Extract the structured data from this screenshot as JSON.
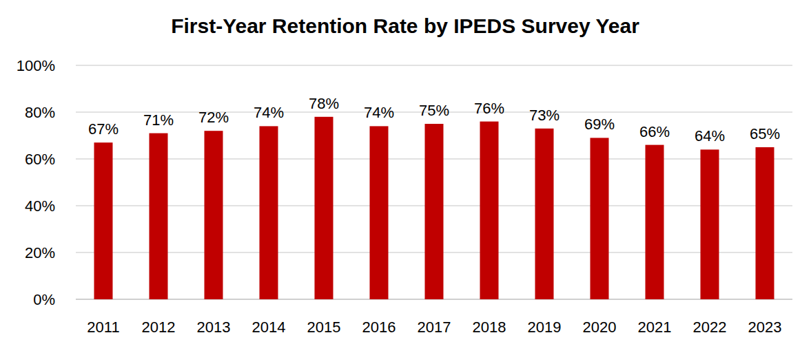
{
  "chart_data": {
    "type": "bar",
    "title": "First-Year Retention Rate by IPEDS Survey Year",
    "categories": [
      "2011",
      "2012",
      "2013",
      "2014",
      "2015",
      "2016",
      "2017",
      "2018",
      "2019",
      "2020",
      "2021",
      "2022",
      "2023"
    ],
    "values": [
      67,
      71,
      72,
      74,
      78,
      74,
      75,
      76,
      73,
      69,
      66,
      64,
      65
    ],
    "value_labels": [
      "67%",
      "71%",
      "72%",
      "74%",
      "78%",
      "74%",
      "75%",
      "76%",
      "73%",
      "69%",
      "66%",
      "64%",
      "65%"
    ],
    "color": "#c00000",
    "ylim": [
      0,
      100
    ],
    "yticks": [
      {
        "value": 0,
        "label": "0%"
      },
      {
        "value": 20,
        "label": "20%"
      },
      {
        "value": 40,
        "label": "40%"
      },
      {
        "value": 60,
        "label": "60%"
      },
      {
        "value": 80,
        "label": "80%"
      },
      {
        "value": 100,
        "label": "100%"
      }
    ],
    "grid": true,
    "data_labels": true
  }
}
